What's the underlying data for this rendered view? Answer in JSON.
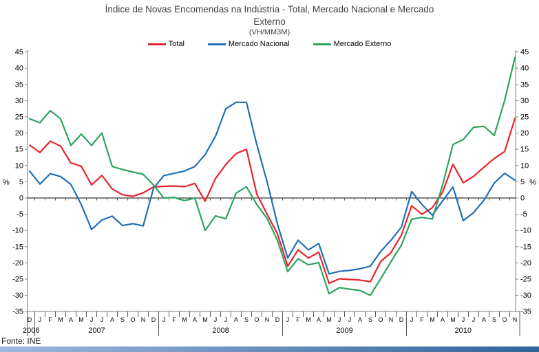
{
  "title": {
    "line1": "Índice de Novas Encomendas na Indústria - Total, Mercado Nacional e Mercado",
    "line2": "Externo",
    "subtitle": "(VH/MM3M)"
  },
  "source": "Fonte: INE",
  "chart_data": {
    "type": "line",
    "title": "Índice de Novas Encomendas na Indústria - Total, Mercado Nacional e Mercado Externo",
    "subtitle": "(VH/MM3M)",
    "ylabel": "%",
    "ylim": [
      -35,
      45
    ],
    "yticks": [
      45,
      40,
      35,
      30,
      25,
      20,
      15,
      10,
      5,
      0,
      -5,
      -10,
      -15,
      -20,
      -25,
      -30,
      -35
    ],
    "grid": false,
    "legend_position": "top",
    "categories": [
      "D",
      "J",
      "F",
      "M",
      "A",
      "M",
      "J",
      "J",
      "A",
      "S",
      "O",
      "N",
      "D",
      "J",
      "F",
      "M",
      "A",
      "M",
      "J",
      "J",
      "A",
      "S",
      "O",
      "N",
      "D",
      "J",
      "F",
      "M",
      "A",
      "M",
      "J",
      "J",
      "A",
      "S",
      "O",
      "N",
      "D",
      "J",
      "F",
      "M",
      "A",
      "M",
      "J",
      "J",
      "A",
      "S",
      "O",
      "N"
    ],
    "year_groups": [
      {
        "label": "2006",
        "count": 1
      },
      {
        "label": "2007",
        "count": 12
      },
      {
        "label": "2008",
        "count": 12
      },
      {
        "label": "2009",
        "count": 12
      },
      {
        "label": "2010",
        "count": 11
      }
    ],
    "series": [
      {
        "name": "Total",
        "color": "#e8232a",
        "values": [
          16.3,
          14.0,
          17.5,
          16.0,
          10.8,
          9.8,
          4.0,
          7.0,
          2.8,
          1.0,
          0.5,
          1.6,
          3.4,
          3.6,
          3.7,
          3.5,
          4.5,
          -1.0,
          6.0,
          10.3,
          13.7,
          15.0,
          1.2,
          -5.0,
          -11.0,
          -21.0,
          -16.0,
          -18.5,
          -16.7,
          -26.3,
          -24.9,
          -25.1,
          -25.3,
          -25.8,
          -19.6,
          -16.8,
          -11.5,
          -2.4,
          -5.0,
          -3.0,
          1.8,
          10.4,
          4.7,
          6.7,
          9.5,
          12.2,
          14.3,
          24.5
        ]
      },
      {
        "name": "Mercado Nacional",
        "color": "#1e6fb8",
        "values": [
          8.3,
          4.3,
          7.5,
          6.6,
          4.2,
          -2.0,
          -9.7,
          -6.8,
          -5.6,
          -8.5,
          -7.9,
          -8.6,
          3.0,
          6.9,
          7.6,
          8.3,
          9.7,
          13.4,
          19.0,
          27.5,
          29.5,
          29.5,
          16.5,
          5.0,
          -8.0,
          -18.5,
          -13.0,
          -16.0,
          -14.0,
          -23.4,
          -22.6,
          -22.3,
          -21.8,
          -21.0,
          -16.5,
          -13.0,
          -9.0,
          2.0,
          -2.0,
          -5.3,
          -0.9,
          3.4,
          -7.0,
          -4.5,
          -0.7,
          4.6,
          7.6,
          5.5
        ]
      },
      {
        "name": "Mercado Externo",
        "color": "#2aa45e",
        "values": [
          24.4,
          23.2,
          26.9,
          24.4,
          16.2,
          19.7,
          16.2,
          20.0,
          9.7,
          8.8,
          8.0,
          7.3,
          4.0,
          0.0,
          0.2,
          -0.8,
          0.0,
          -10.0,
          -5.5,
          -6.4,
          1.5,
          3.5,
          -2.0,
          -6.3,
          -13.0,
          -22.7,
          -18.7,
          -20.6,
          -19.9,
          -29.5,
          -27.6,
          -28.1,
          -28.5,
          -30.0,
          -24.9,
          -19.6,
          -14.6,
          -6.5,
          -6.0,
          -6.5,
          4.0,
          16.5,
          18.0,
          21.8,
          22.1,
          19.3,
          30.0,
          43.3
        ]
      }
    ]
  }
}
